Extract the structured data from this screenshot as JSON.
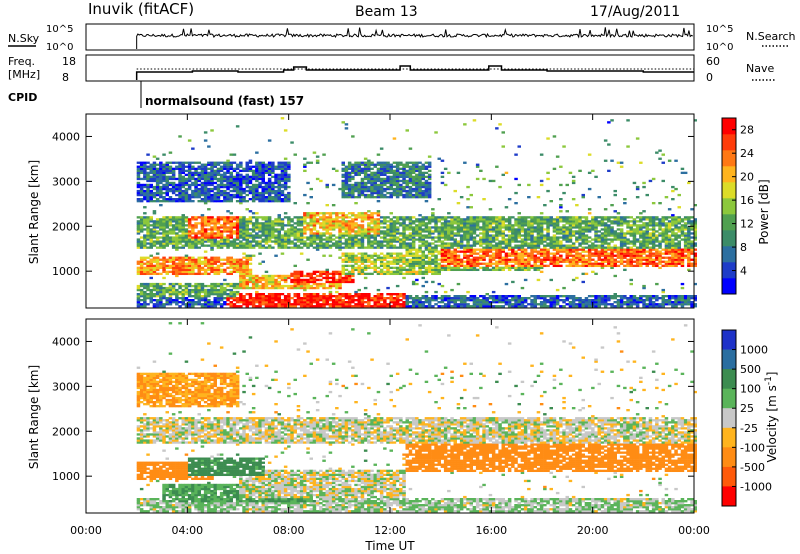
{
  "header": {
    "title": "Inuvik (fitACF)",
    "beam": "Beam 13",
    "date": "17/Aug/2011"
  },
  "noise_panel": {
    "left_label": "N.Sky",
    "right_label": "N.Search",
    "left_ticks": [
      "10^5",
      "10^0"
    ],
    "right_ticks": [
      "10^5",
      "10^0"
    ]
  },
  "freq_panel": {
    "left_label_1": "Freq.",
    "left_label_2": "[MHz]",
    "right_label": "Nave",
    "left_ticks": [
      "18",
      "8"
    ],
    "right_ticks": [
      "60",
      "0"
    ]
  },
  "cpid": {
    "label": "CPID",
    "mode": "normalsound (fast) 157"
  },
  "chart_data": [
    {
      "type": "heatmap",
      "name": "Power",
      "ylabel": "Slant Range [km]",
      "xlabel": "Time UT",
      "x_ticks": [
        "00:00",
        "04:00",
        "08:00",
        "12:00",
        "16:00",
        "20:00",
        "00:00"
      ],
      "xlim_hours": [
        0,
        24
      ],
      "ylim_km": [
        180,
        4500
      ],
      "y_ticks": [
        1000,
        2000,
        3000,
        4000
      ],
      "colorbar": {
        "label": "Power [dB]",
        "ticks": [
          4,
          8,
          12,
          16,
          20,
          24,
          28
        ],
        "range": [
          0,
          30
        ],
        "colors": [
          "#0000ff",
          "#1e3cc8",
          "#2c6fa0",
          "#3c8c68",
          "#50a050",
          "#8cc83c",
          "#dcdc28",
          "#ffb41e",
          "#ff7814",
          "#ff3c0a",
          "#ff0000"
        ]
      },
      "data_start_hour": 2.0,
      "bands": [
        {
          "t0": 2.0,
          "t1": 24.0,
          "r0": 200,
          "r1": 450,
          "v": 6
        },
        {
          "t0": 5.5,
          "t1": 12.5,
          "r0": 200,
          "r1": 500,
          "v": 28
        },
        {
          "t0": 2.0,
          "t1": 6.0,
          "r0": 400,
          "r1": 700,
          "v": 12
        },
        {
          "t0": 6.0,
          "t1": 10.0,
          "r0": 600,
          "r1": 900,
          "v": 20
        },
        {
          "t0": 2.0,
          "t1": 6.5,
          "r0": 900,
          "r1": 1300,
          "v": 22
        },
        {
          "t0": 8.0,
          "t1": 10.5,
          "r0": 700,
          "r1": 1000,
          "v": 28
        },
        {
          "t0": 10.0,
          "t1": 14.0,
          "r0": 900,
          "r1": 1400,
          "v": 16
        },
        {
          "t0": 12.5,
          "t1": 18.0,
          "r0": 1000,
          "r1": 1800,
          "v": 14
        },
        {
          "t0": 14.0,
          "t1": 24.0,
          "r0": 1100,
          "r1": 1700,
          "v": 24
        },
        {
          "t0": 2.0,
          "t1": 24.0,
          "r0": 1500,
          "r1": 2200,
          "v": 12
        },
        {
          "t0": 4.0,
          "t1": 6.0,
          "r0": 1700,
          "r1": 2200,
          "v": 24
        },
        {
          "t0": 8.5,
          "t1": 11.5,
          "r0": 1800,
          "r1": 2300,
          "v": 20
        },
        {
          "t0": 2.0,
          "t1": 8.0,
          "r0": 2500,
          "r1": 3400,
          "v": 6
        },
        {
          "t0": 10.0,
          "t1": 13.5,
          "r0": 2600,
          "r1": 3400,
          "v": 8
        }
      ]
    },
    {
      "type": "heatmap",
      "name": "Velocity",
      "ylabel": "Slant Range [km]",
      "xlabel": "Time UT",
      "x_ticks": [
        "00:00",
        "04:00",
        "08:00",
        "12:00",
        "16:00",
        "20:00",
        "00:00"
      ],
      "xlim_hours": [
        0,
        24
      ],
      "ylim_km": [
        180,
        4500
      ],
      "y_ticks": [
        1000,
        2000,
        3000,
        4000
      ],
      "colorbar": {
        "label": "Velocity [m s^-1]",
        "ticks": [
          "1000",
          "500",
          "100",
          "25",
          "-25",
          "-100",
          "-500",
          "-1000"
        ],
        "colors": [
          "#1e32c8",
          "#2a6ea0",
          "#3c8c50",
          "#5ab45a",
          "#c8c8c8",
          "#ffb41e",
          "#ff8c14",
          "#ff5a0a",
          "#ff0000"
        ]
      },
      "data_start_hour": 2.0,
      "bands": [
        {
          "t0": 2.0,
          "t1": 24.0,
          "r0": 200,
          "r1": 500,
          "v": 25
        },
        {
          "t0": 3.0,
          "t1": 9.0,
          "r0": 400,
          "r1": 800,
          "v": 100
        },
        {
          "t0": 6.0,
          "t1": 12.5,
          "r0": 500,
          "r1": 1100,
          "v": 0
        },
        {
          "t0": 2.0,
          "t1": 5.0,
          "r0": 900,
          "r1": 1300,
          "v": -200
        },
        {
          "t0": 4.0,
          "t1": 7.0,
          "r0": 1000,
          "r1": 1400,
          "v": 150
        },
        {
          "t0": 12.5,
          "t1": 24.0,
          "r0": 1100,
          "r1": 1800,
          "v": -200
        },
        {
          "t0": 2.0,
          "t1": 24.0,
          "r0": 1700,
          "r1": 2300,
          "v": 0
        },
        {
          "t0": 2.0,
          "t1": 6.0,
          "r0": 2500,
          "r1": 3300,
          "v": -100
        }
      ]
    }
  ]
}
